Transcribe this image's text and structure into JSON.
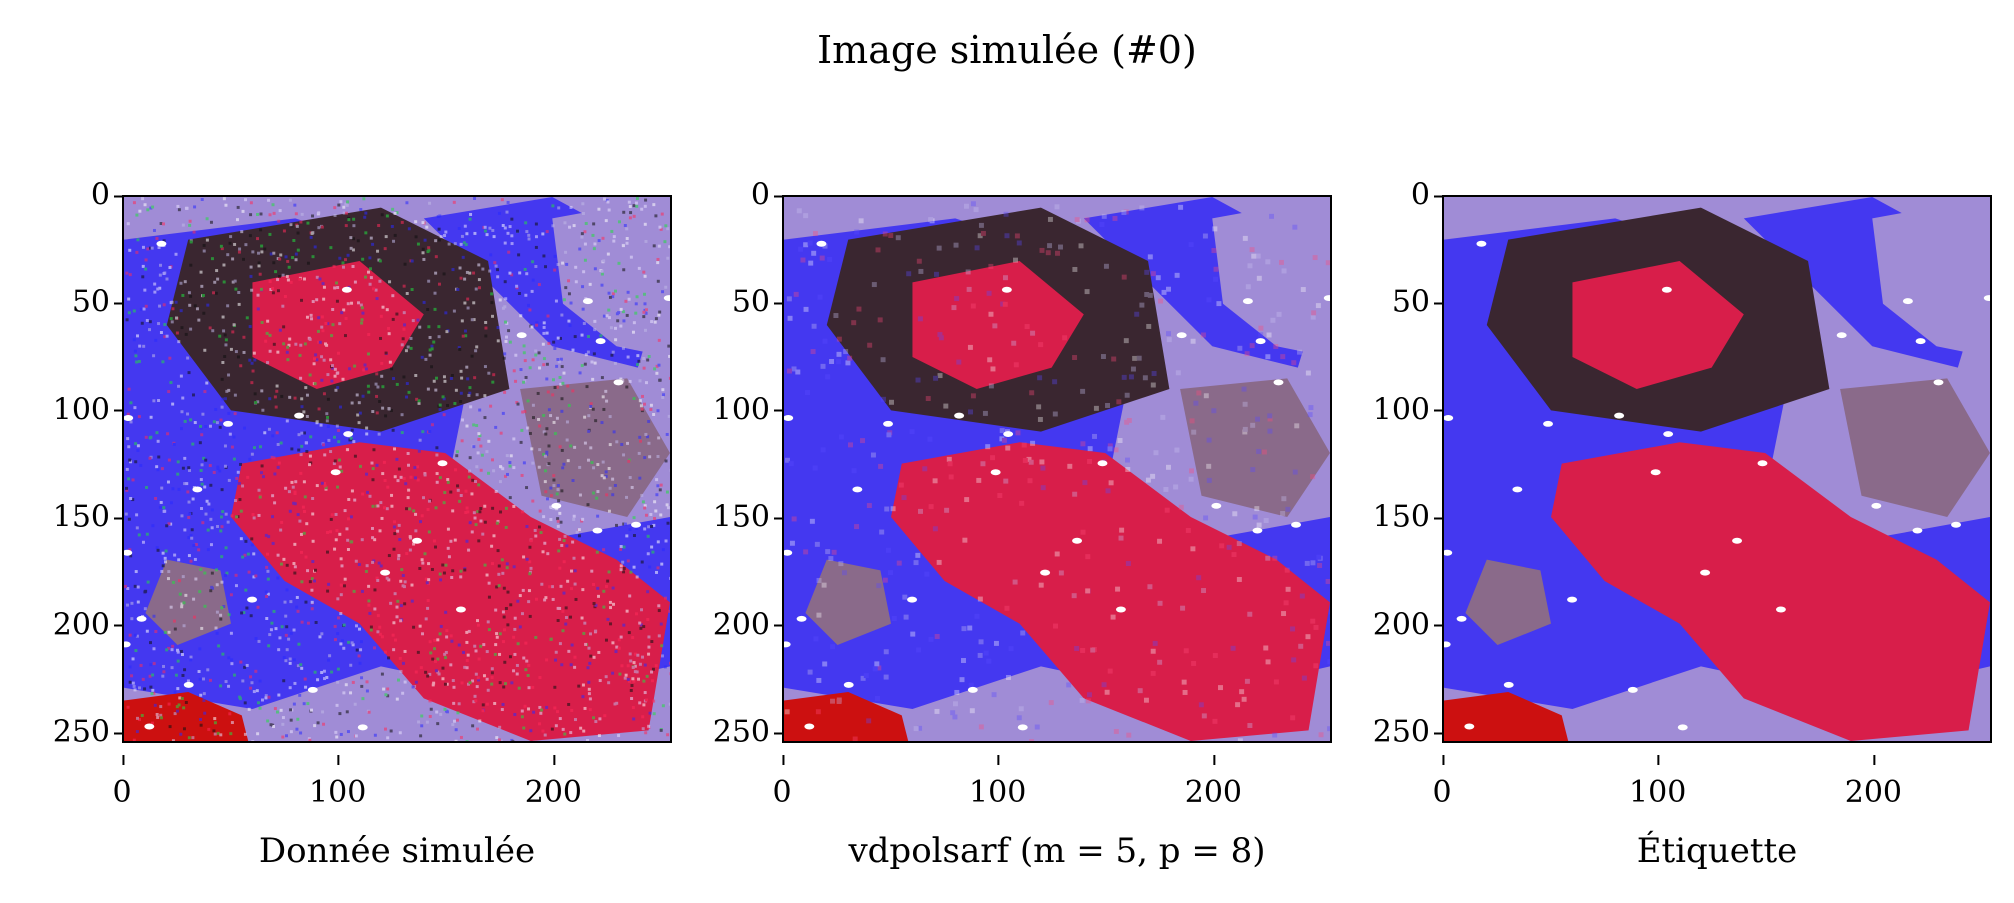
{
  "chart_data": {
    "type": "heatmap",
    "title": "Image simulée (#0)",
    "panels": [
      {
        "id": "data",
        "xlabel": "Donnée simulée",
        "xticks": [
          0,
          100,
          200
        ],
        "yticks": [
          0,
          50,
          100,
          150,
          200,
          250
        ],
        "xlim": [
          0,
          255
        ],
        "ylim": [
          255,
          0
        ],
        "noise": "high"
      },
      {
        "id": "estimate",
        "xlabel": "vdpolsarf (m = 5, p = 8)",
        "xticks": [
          0,
          100,
          200
        ],
        "yticks": [
          0,
          50,
          100,
          150,
          200,
          250
        ],
        "xlim": [
          0,
          255
        ],
        "ylim": [
          255,
          0
        ],
        "noise": "low"
      },
      {
        "id": "label",
        "xlabel": "Étiquette",
        "xticks": [
          0,
          100,
          200
        ],
        "yticks": [
          0,
          50,
          100,
          150,
          200,
          250
        ],
        "xlim": [
          0,
          255
        ],
        "ylim": [
          255,
          0
        ],
        "noise": "none"
      }
    ],
    "colors": {
      "red_region": "#d81e4a",
      "blue_region": "#4438f0",
      "lavender_region": "#a08cd6",
      "dark_region": "#3a2630",
      "mauve_region": "#8a6a8a",
      "bright_red": "#cc1010"
    }
  }
}
